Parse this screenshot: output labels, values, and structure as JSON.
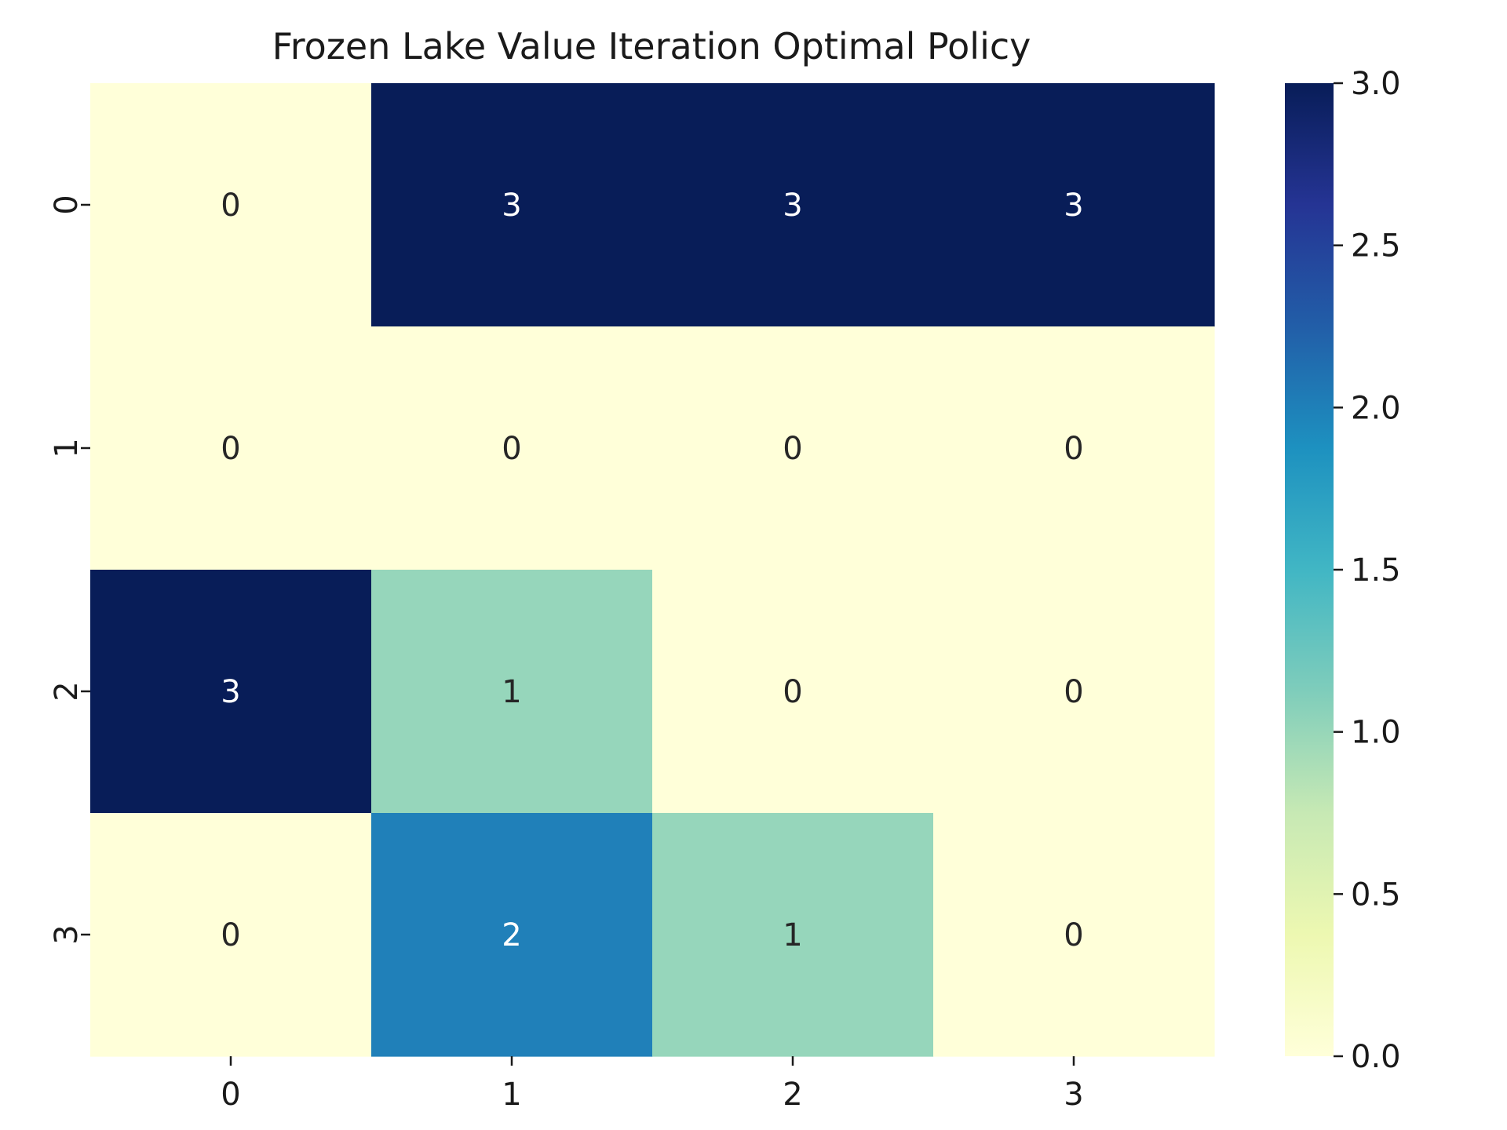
{
  "chart_data": {
    "type": "heatmap",
    "title": "Frozen Lake Value Iteration Optimal Policy",
    "xlabel": "",
    "ylabel": "",
    "x_categories": [
      "0",
      "1",
      "2",
      "3"
    ],
    "y_categories": [
      "0",
      "1",
      "2",
      "3"
    ],
    "values": [
      [
        0,
        3,
        3,
        3
      ],
      [
        0,
        0,
        0,
        0
      ],
      [
        3,
        1,
        0,
        0
      ],
      [
        0,
        2,
        1,
        0
      ]
    ],
    "annotations": [
      [
        "0",
        "3",
        "3",
        "3"
      ],
      [
        "0",
        "0",
        "0",
        "0"
      ],
      [
        "3",
        "1",
        "0",
        "0"
      ],
      [
        "0",
        "2",
        "1",
        "0"
      ]
    ],
    "colormap": "YlGnBu",
    "color_range": [
      0,
      3
    ],
    "colorbar": {
      "position": "right",
      "ticks": [
        "0.0",
        "0.5",
        "1.0",
        "1.5",
        "2.0",
        "2.5",
        "3.0"
      ],
      "tick_values": [
        0,
        0.5,
        1,
        1.5,
        2,
        2.5,
        3
      ]
    },
    "colors": {
      "low": "#ffffd9",
      "value_1": "#96d6bb",
      "value_2": "#2080b9",
      "high": "#081d58"
    },
    "grid": false
  }
}
